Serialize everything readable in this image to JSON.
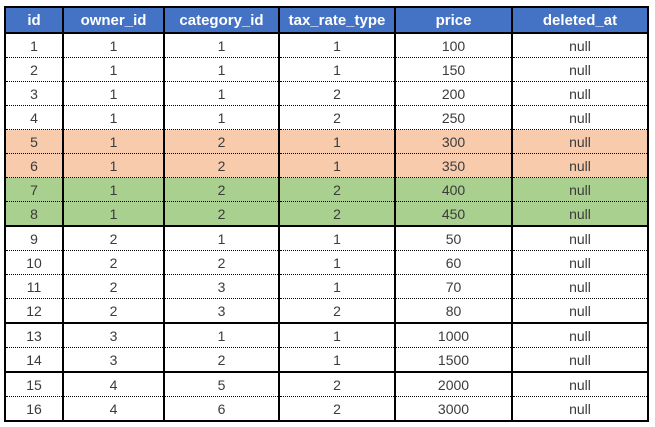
{
  "columns": [
    "id",
    "owner_id",
    "category_id",
    "tax_rate_type",
    "price",
    "deleted_at"
  ],
  "colors": {
    "header_bg": "#4472c4",
    "header_text": "#ffffff",
    "highlight_orange": "#f8cbad",
    "highlight_green": "#a9d08e"
  },
  "rows": [
    {
      "cells": [
        "1",
        "1",
        "1",
        "1",
        "100",
        "null"
      ],
      "highlight": "none",
      "group_end": false
    },
    {
      "cells": [
        "2",
        "1",
        "1",
        "1",
        "150",
        "null"
      ],
      "highlight": "none",
      "group_end": false
    },
    {
      "cells": [
        "3",
        "1",
        "1",
        "2",
        "200",
        "null"
      ],
      "highlight": "none",
      "group_end": false
    },
    {
      "cells": [
        "4",
        "1",
        "1",
        "2",
        "250",
        "null"
      ],
      "highlight": "none",
      "group_end": false
    },
    {
      "cells": [
        "5",
        "1",
        "2",
        "1",
        "300",
        "null"
      ],
      "highlight": "orange",
      "group_end": false
    },
    {
      "cells": [
        "6",
        "1",
        "2",
        "1",
        "350",
        "null"
      ],
      "highlight": "orange",
      "group_end": false
    },
    {
      "cells": [
        "7",
        "1",
        "2",
        "2",
        "400",
        "null"
      ],
      "highlight": "green",
      "group_end": false
    },
    {
      "cells": [
        "8",
        "1",
        "2",
        "2",
        "450",
        "null"
      ],
      "highlight": "green",
      "group_end": true
    },
    {
      "cells": [
        "9",
        "2",
        "1",
        "1",
        "50",
        "null"
      ],
      "highlight": "none",
      "group_end": false
    },
    {
      "cells": [
        "10",
        "2",
        "2",
        "1",
        "60",
        "null"
      ],
      "highlight": "none",
      "group_end": false
    },
    {
      "cells": [
        "11",
        "2",
        "3",
        "1",
        "70",
        "null"
      ],
      "highlight": "none",
      "group_end": false
    },
    {
      "cells": [
        "12",
        "2",
        "3",
        "2",
        "80",
        "null"
      ],
      "highlight": "none",
      "group_end": true
    },
    {
      "cells": [
        "13",
        "3",
        "1",
        "1",
        "1000",
        "null"
      ],
      "highlight": "none",
      "group_end": false
    },
    {
      "cells": [
        "14",
        "3",
        "2",
        "1",
        "1500",
        "null"
      ],
      "highlight": "none",
      "group_end": true
    },
    {
      "cells": [
        "15",
        "4",
        "5",
        "2",
        "2000",
        "null"
      ],
      "highlight": "none",
      "group_end": false
    },
    {
      "cells": [
        "16",
        "4",
        "6",
        "2",
        "3000",
        "null"
      ],
      "highlight": "none",
      "group_end": true
    }
  ]
}
